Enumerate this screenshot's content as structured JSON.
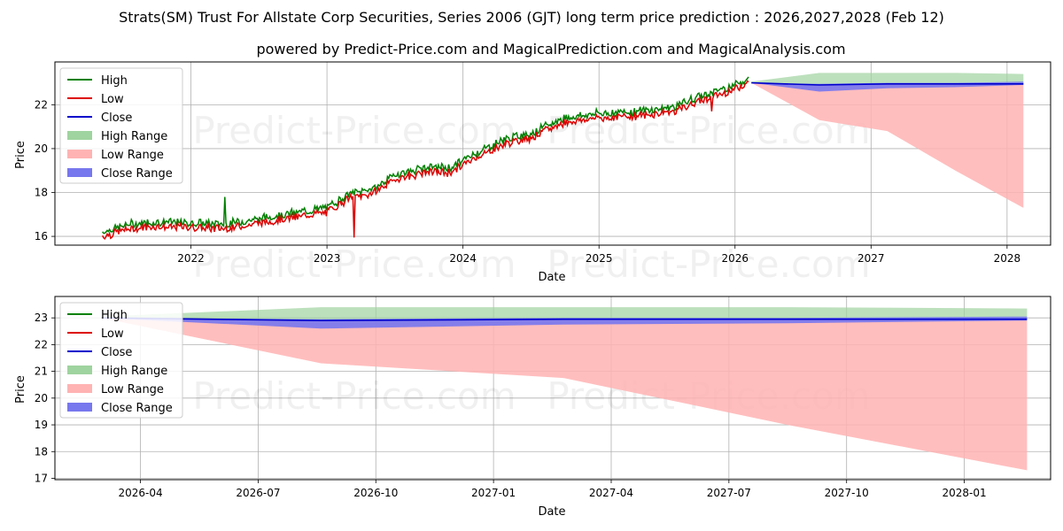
{
  "title": "Strats(SM) Trust For Allstate Corp Securities, Series 2006 (GJT) long term price prediction : 2026,2027,2028 (Feb 12)",
  "subtitle": "powered by Predict-Price.com and MagicalPrediction.com and MagicalAnalysis.com",
  "watermark": "Predict-Price.com",
  "legend": [
    "High",
    "Low",
    "Close",
    "High Range",
    "Low Range",
    "Close Range"
  ],
  "colors": {
    "high": "#008000",
    "low": "#dd0000",
    "close": "#0000cc",
    "high_range": "#9fd39f",
    "low_range": "#ffb3b3",
    "close_range": "#7777ee"
  },
  "chart_data": [
    {
      "type": "line",
      "id": "long-term",
      "xlabel": "Date",
      "ylabel": "Price",
      "x_unit": "year (decimal)",
      "xlim": [
        2021.0,
        2028.32
      ],
      "ylim": [
        15.6,
        23.95
      ],
      "xticks": [
        2022,
        2023,
        2024,
        2025,
        2026,
        2027,
        2028
      ],
      "xtick_labels": [
        "2022",
        "2023",
        "2024",
        "2025",
        "2026",
        "2027",
        "2028"
      ],
      "yticks": [
        16,
        18,
        20,
        22
      ],
      "ytick_labels": [
        "16",
        "18",
        "20",
        "22"
      ],
      "grid": true,
      "legend_position": "upper-left",
      "history_anchors": {
        "x": [
          2021.35,
          2021.55,
          2021.75,
          2022.0,
          2022.25,
          2022.5,
          2022.75,
          2023.0,
          2023.15,
          2023.35,
          2023.5,
          2023.75,
          2023.9,
          2024.1,
          2024.3,
          2024.5,
          2024.75,
          2025.0,
          2025.3,
          2025.55,
          2025.75,
          2025.95,
          2026.1
        ],
        "y": [
          16.1,
          16.45,
          16.55,
          16.5,
          16.45,
          16.7,
          16.95,
          17.2,
          17.8,
          18.1,
          18.7,
          19.05,
          19.0,
          19.7,
          20.3,
          20.6,
          21.3,
          21.5,
          21.6,
          21.8,
          22.3,
          22.7,
          23.1
        ]
      },
      "history_spikes": [
        {
          "x": 2022.25,
          "y": 17.8,
          "series": "high"
        },
        {
          "x": 2022.32,
          "y": 16.3,
          "series": "low"
        },
        {
          "x": 2023.2,
          "y": 15.95,
          "series": "low"
        },
        {
          "x": 2025.83,
          "y": 21.7,
          "series": "low"
        }
      ],
      "series": [
        {
          "name": "High Range",
          "x": [
            2026.12,
            2026.62,
            2027.12,
            2027.62,
            2028.12
          ],
          "upper": [
            23.05,
            23.45,
            23.45,
            23.45,
            23.4
          ],
          "lower": [
            23.0,
            22.9,
            22.95,
            22.95,
            22.95
          ]
        },
        {
          "name": "Low Range",
          "x": [
            2026.12,
            2026.62,
            2027.12,
            2027.62,
            2028.12
          ],
          "upper": [
            23.0,
            22.9,
            22.95,
            22.95,
            22.95
          ],
          "lower": [
            23.0,
            21.3,
            20.8,
            19.0,
            17.3
          ]
        },
        {
          "name": "Close Range",
          "x": [
            2026.12,
            2026.62,
            2027.12,
            2027.62,
            2028.12
          ],
          "upper": [
            23.0,
            22.95,
            23.0,
            23.0,
            23.05
          ],
          "lower": [
            23.0,
            22.6,
            22.75,
            22.8,
            22.9
          ]
        },
        {
          "name": "Close",
          "x": [
            2026.12,
            2026.62,
            2027.12,
            2027.62,
            2028.12
          ],
          "y": [
            23.0,
            22.9,
            22.95,
            22.95,
            22.95
          ]
        }
      ]
    },
    {
      "type": "line",
      "id": "zoom",
      "xlabel": "Date",
      "ylabel": "Price",
      "x_unit": "months since 2026-01",
      "xlim": [
        0.82,
        26.2
      ],
      "ylim": [
        16.95,
        23.8
      ],
      "xticks": [
        3,
        6,
        9,
        12,
        15,
        18,
        21,
        24
      ],
      "xtick_labels": [
        "2026-04",
        "2026-07",
        "2026-10",
        "2027-01",
        "2027-04",
        "2027-07",
        "2027-10",
        "2028-01"
      ],
      "yticks": [
        17,
        18,
        19,
        20,
        21,
        22,
        23
      ],
      "ytick_labels": [
        "17",
        "18",
        "19",
        "20",
        "21",
        "22",
        "23"
      ],
      "grid": true,
      "legend_position": "upper-left",
      "series": [
        {
          "name": "High Range",
          "x": [
            2.0,
            7.6,
            13.8,
            19.5,
            25.6
          ],
          "upper": [
            23.05,
            23.4,
            23.4,
            23.4,
            23.35
          ],
          "lower": [
            23.0,
            22.9,
            22.95,
            22.95,
            22.95
          ]
        },
        {
          "name": "Low Range",
          "x": [
            2.0,
            7.6,
            13.8,
            19.5,
            25.6
          ],
          "upper": [
            23.0,
            22.9,
            22.95,
            22.95,
            22.95
          ],
          "lower": [
            23.0,
            21.3,
            20.75,
            19.0,
            17.3
          ]
        },
        {
          "name": "Close Range",
          "x": [
            2.0,
            7.6,
            13.8,
            19.5,
            25.6
          ],
          "upper": [
            23.0,
            22.95,
            23.0,
            23.0,
            23.05
          ],
          "lower": [
            23.0,
            22.6,
            22.75,
            22.8,
            22.9
          ]
        },
        {
          "name": "Close",
          "x": [
            2.0,
            7.6,
            13.8,
            19.5,
            25.6
          ],
          "y": [
            23.0,
            22.9,
            22.95,
            22.95,
            22.95
          ]
        }
      ]
    }
  ]
}
